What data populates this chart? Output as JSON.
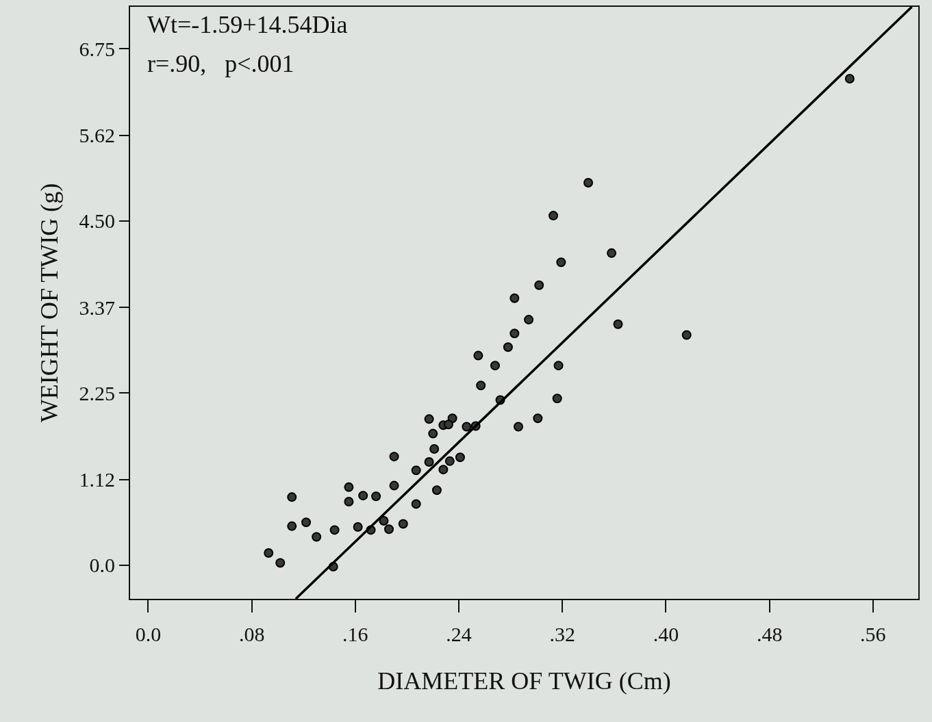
{
  "chart_data": {
    "type": "scatter",
    "xlabel": "DIAMETER OF TWIG (Cm)",
    "ylabel": "WEIGHT OF TWIG (g)",
    "annotations": [
      "Wt=-1.59+14.54Dia",
      "r=.90,   p<.001"
    ],
    "xlim": [
      -0.014,
      0.595
    ],
    "ylim": [
      -0.44,
      7.3
    ],
    "xticks": [
      {
        "value": 0,
        "label": "0.0"
      },
      {
        "value": 0.08,
        "label": ".08"
      },
      {
        "value": 0.16,
        "label": ".16"
      },
      {
        "value": 0.24,
        "label": ".24"
      },
      {
        "value": 0.32,
        "label": ".32"
      },
      {
        "value": 0.4,
        "label": ".40"
      },
      {
        "value": 0.48,
        "label": ".48"
      },
      {
        "value": 0.56,
        "label": ".56"
      }
    ],
    "yticks": [
      {
        "value": 0,
        "label": "0.0"
      },
      1.12,
      2.25,
      3.37,
      {
        "value": 4.5,
        "label": "4.50"
      },
      5.62,
      6.75
    ],
    "grid": false,
    "marker": "circle",
    "series": [
      {
        "color": "#383838",
        "x": [
          0.093,
          0.102,
          0.111,
          0.111,
          0.122,
          0.13,
          0.144,
          0.143,
          0.155,
          0.155,
          0.166,
          0.162,
          0.172,
          0.176,
          0.182,
          0.186,
          0.19,
          0.19,
          0.197,
          0.207,
          0.207,
          0.217,
          0.22,
          0.221,
          0.223,
          0.217,
          0.228,
          0.228,
          0.233,
          0.235,
          0.232,
          0.241,
          0.246,
          0.253,
          0.255,
          0.257,
          0.268,
          0.272,
          0.278,
          0.283,
          0.286,
          0.283,
          0.294,
          0.301,
          0.302,
          0.316,
          0.317,
          0.313,
          0.319,
          0.34,
          0.358,
          0.363,
          0.416,
          0.542
        ],
        "values": [
          0.16,
          0.03,
          0.89,
          0.51,
          0.56,
          0.37,
          0.46,
          -0.02,
          1.02,
          0.83,
          0.91,
          0.5,
          0.46,
          0.9,
          0.58,
          0.47,
          1.42,
          1.04,
          0.54,
          0.8,
          1.24,
          1.91,
          1.72,
          1.52,
          0.98,
          1.35,
          1.25,
          1.83,
          1.36,
          1.92,
          1.84,
          1.41,
          1.81,
          1.82,
          2.74,
          2.35,
          2.61,
          2.16,
          2.85,
          3.49,
          1.81,
          3.03,
          3.21,
          1.92,
          3.66,
          2.18,
          2.61,
          4.57,
          3.96,
          5.0,
          4.08,
          3.15,
          3.01,
          6.36
        ]
      },
      {
        "type": "line",
        "marker": "none",
        "color": "#000000",
        "line_style": "solid",
        "x": [
          0.114,
          0.59
        ],
        "values": [
          -0.44,
          7.3
        ]
      }
    ]
  }
}
